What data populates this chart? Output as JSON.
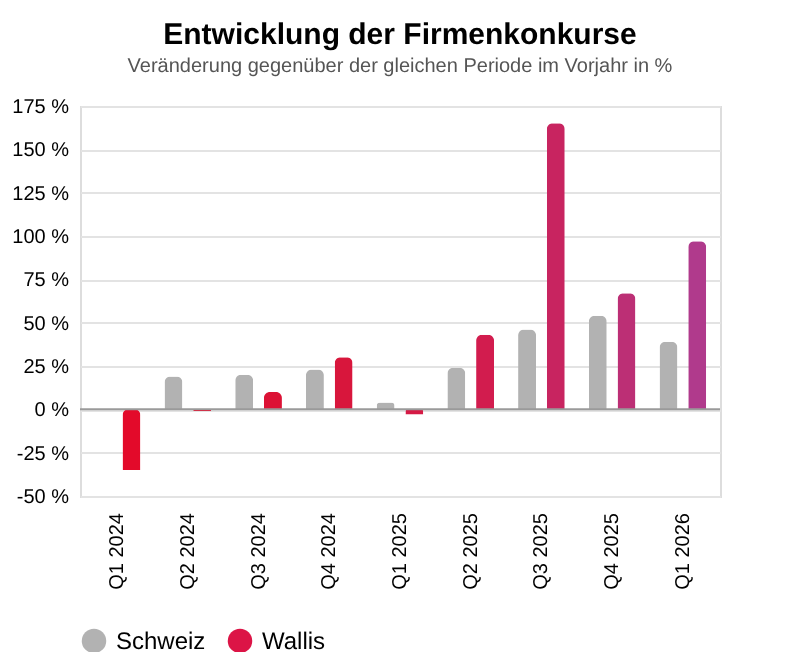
{
  "chart_data": {
    "type": "bar",
    "title": "Entwicklung der Firmenkonkurse",
    "subtitle": "Veränderung gegenüber der gleichen Periode im Vorjahr in %",
    "categories": [
      "Q1 2024",
      "Q2 2024",
      "Q3 2024",
      "Q4 2024",
      "Q1 2025",
      "Q2 2025",
      "Q3 2025",
      "Q4 2025",
      "Q1 2026"
    ],
    "series": [
      {
        "name": "Schweiz",
        "color": "#b2b2b2",
        "values": [
          0,
          19,
          20,
          23,
          4,
          24,
          46,
          54,
          39
        ]
      },
      {
        "name": "Wallis",
        "color": "#dc1446",
        "colors": [
          "#e30a2a",
          "#e0102f",
          "#dc1235",
          "#d8163c",
          "#d51a45",
          "#d21c4e",
          "#c82460",
          "#bc2f75",
          "#b03a8c"
        ],
        "values": [
          -35,
          -1,
          10,
          30,
          -3,
          43,
          165,
          67,
          97
        ]
      }
    ],
    "ylim": [
      -50,
      175
    ],
    "yticks": [
      {
        "value": -50,
        "label": "-50 %"
      },
      {
        "value": -25,
        "label": "-25 %"
      },
      {
        "value": 0,
        "label": "0 %"
      },
      {
        "value": 25,
        "label": "25 %"
      },
      {
        "value": 50,
        "label": "50 %"
      },
      {
        "value": 75,
        "label": "75 %"
      },
      {
        "value": 100,
        "label": "100 %"
      },
      {
        "value": 125,
        "label": "125 %"
      },
      {
        "value": 150,
        "label": "150 %"
      },
      {
        "value": 175,
        "label": "175 %"
      }
    ],
    "grid": "y",
    "legend": "bottom"
  }
}
